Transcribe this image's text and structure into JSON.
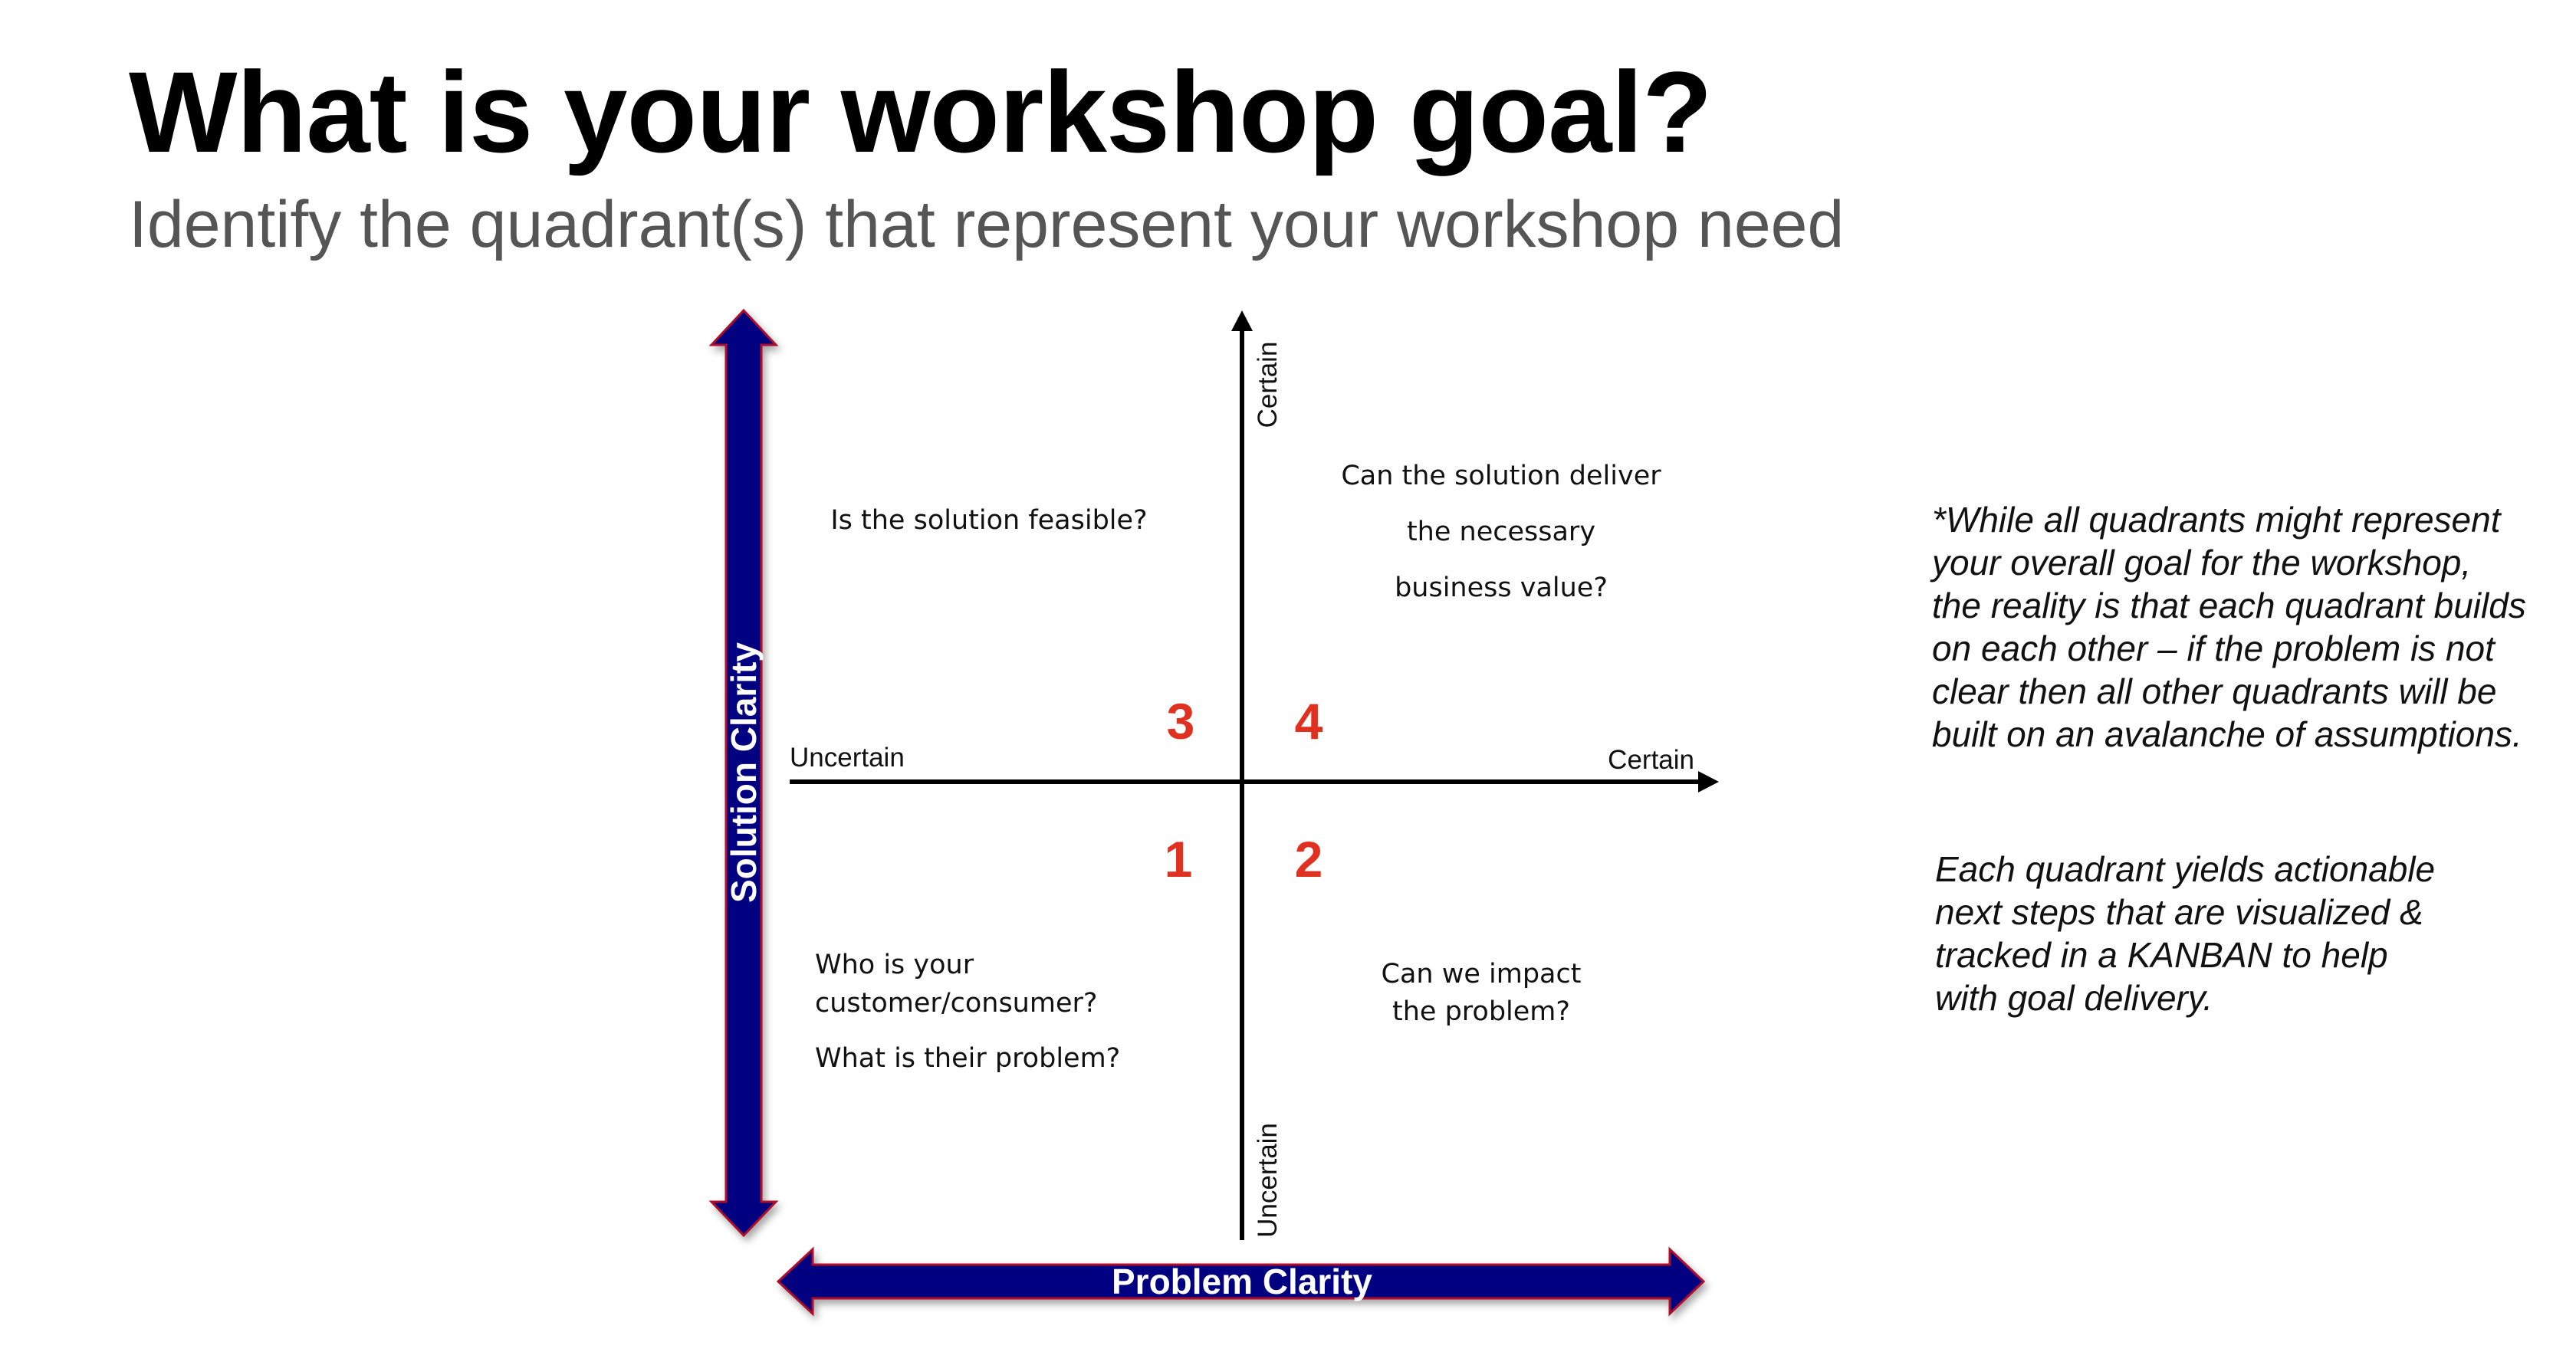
{
  "slide": {
    "title": "What is your workshop goal?",
    "subtitle": "Identify the quadrant(s) that represent your workshop need"
  },
  "axes": {
    "solution_clarity": "Solution Clarity",
    "problem_clarity": "Problem Clarity",
    "horizontal_left": "Uncertain",
    "horizontal_right": "Certain",
    "vertical_top": "Certain",
    "vertical_bottom": "Uncertain"
  },
  "quadrants": {
    "q1": {
      "number": "1",
      "lines": [
        "Who is your",
        "customer/consumer?",
        "What is their problem?"
      ]
    },
    "q2": {
      "number": "2",
      "lines": [
        "Can we impact",
        "the problem?"
      ]
    },
    "q3": {
      "number": "3",
      "lines": [
        "Is the solution feasible?"
      ]
    },
    "q4": {
      "number": "4",
      "lines": [
        "Can the solution deliver",
        "the necessary",
        "business value?"
      ]
    }
  },
  "notes": {
    "note1": "*While all quadrants might represent\nyour overall goal for the workshop,\nthe reality is that each quadrant builds\non each other – if the problem is not\nclear then all other quadrants will be\nbuilt on an avalanche of assumptions.",
    "note2": "Each quadrant yields actionable\nnext steps that are visualized &\ntracked in a KANBAN to help\nwith goal delivery."
  },
  "colors": {
    "big_arrow_fill": "#000080",
    "big_arrow_outline": "#b0102a",
    "quadrant_number": "#e03020",
    "axis_line": "#000000"
  }
}
